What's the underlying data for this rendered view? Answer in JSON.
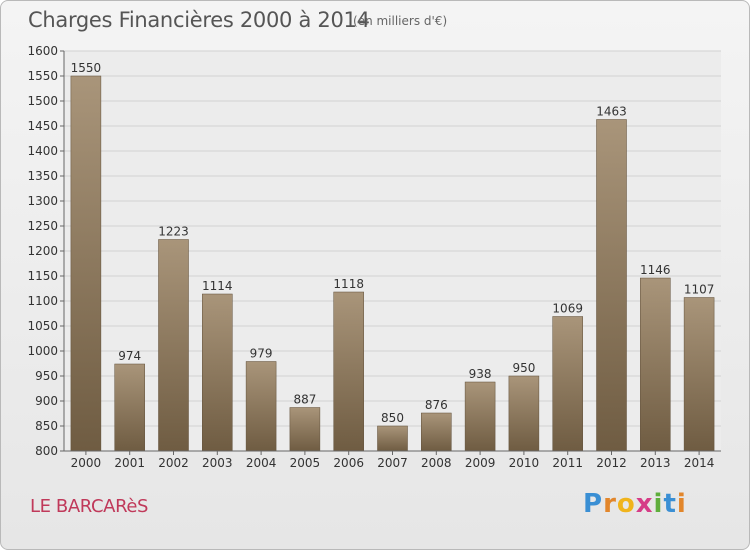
{
  "chart_data": {
    "type": "bar",
    "title": "Charges Financières 2000 à 2014",
    "subtitle": "(en milliers d'€)",
    "categories": [
      "2000",
      "2001",
      "2002",
      "2003",
      "2004",
      "2005",
      "2006",
      "2007",
      "2008",
      "2009",
      "2010",
      "2011",
      "2012",
      "2013",
      "2014"
    ],
    "values": [
      1550,
      974,
      1223,
      1114,
      979,
      887,
      1118,
      850,
      876,
      938,
      950,
      1069,
      1463,
      1146,
      1107
    ],
    "ylim": [
      800,
      1600
    ],
    "yticks": [
      800,
      850,
      900,
      950,
      1000,
      1050,
      1100,
      1150,
      1200,
      1250,
      1300,
      1350,
      1400,
      1450,
      1500,
      1550,
      1600
    ],
    "grid": true,
    "bar_color": "#8f7a5b",
    "bar_color_light": "#a9957a",
    "bar_color_dark": "#6f5c42"
  },
  "footer": {
    "town": "LE BARCARèS",
    "logo": {
      "p": "P",
      "r": "r",
      "o": "o",
      "x": "x",
      "i1": "i",
      "t": "t",
      "i2": "i"
    }
  }
}
